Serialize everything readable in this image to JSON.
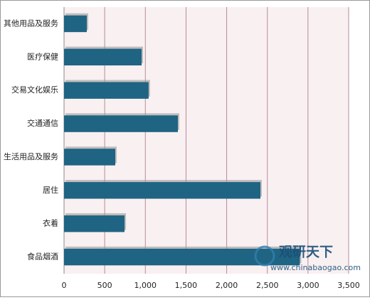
{
  "chart_data": {
    "type": "barh",
    "categories": [
      "其他用品及服务",
      "医疗保健",
      "交易文化娱乐",
      "交通通信",
      "生活用品及服务",
      "居住",
      "衣着",
      "食品烟酒"
    ],
    "values": [
      280,
      954,
      1040,
      1400,
      630,
      2415,
      744,
      2900
    ],
    "color": "#1f6482",
    "xlim": [
      0,
      3500
    ],
    "xticks": [
      0,
      500,
      {
        "value": 1000,
        "label": "1,000"
      },
      {
        "value": 1500,
        "label": "1,500"
      },
      {
        "value": 2000,
        "label": "2,000"
      },
      {
        "value": 2500,
        "label": "2,500"
      },
      {
        "value": 3000,
        "label": "3,000"
      },
      {
        "value": 3500,
        "label": "3,500"
      }
    ],
    "grid": true,
    "watermark": {
      "brand": "观研天下",
      "url": "www.chinabaogao.com"
    }
  }
}
